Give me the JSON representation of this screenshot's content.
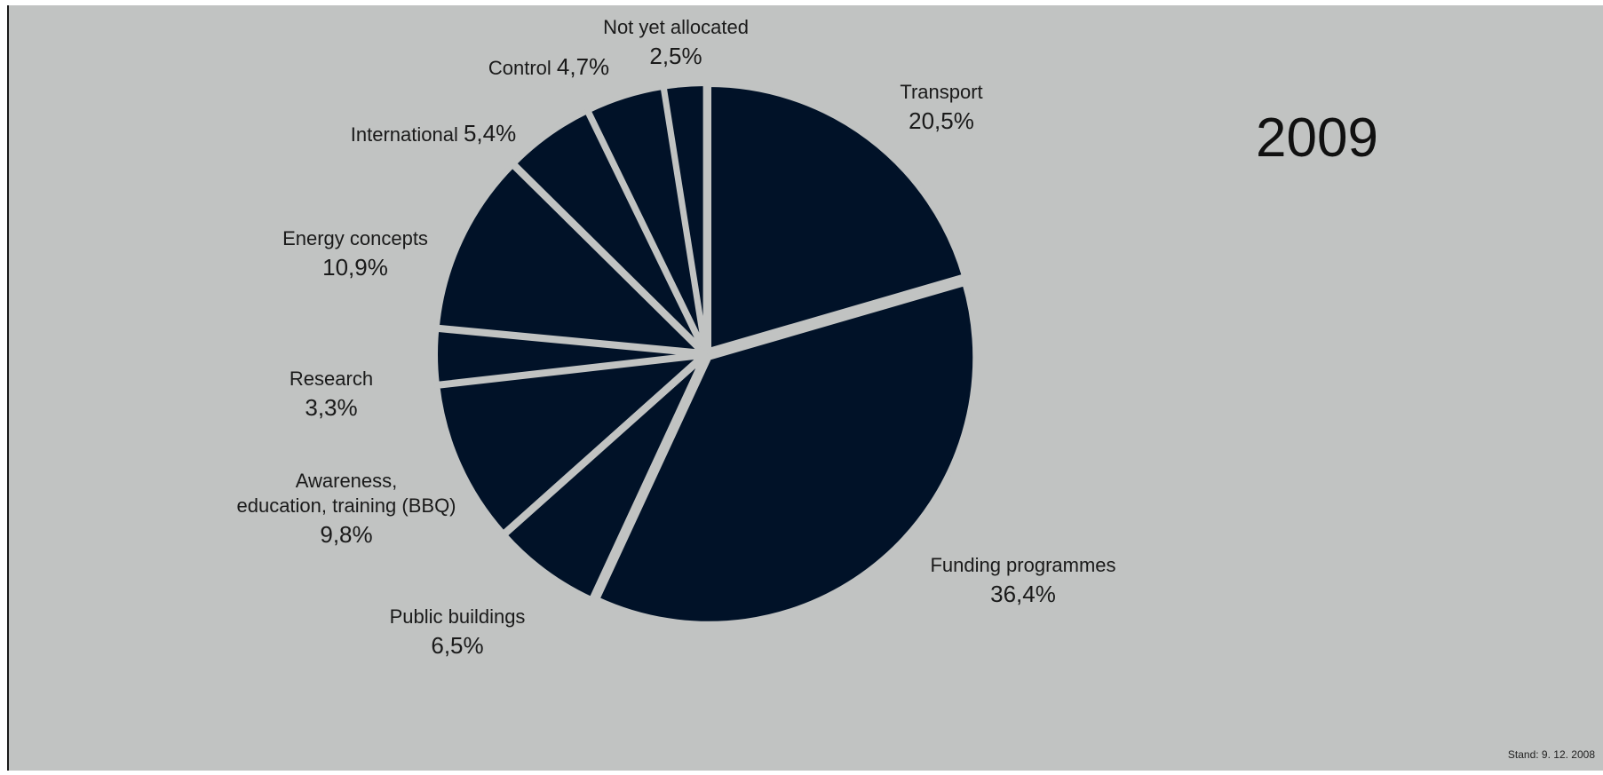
{
  "colors": {
    "background": "#c1c3c2",
    "slice": "#011228",
    "separator": "#c1c3c2",
    "text": "#1a1a1a"
  },
  "year": "2009",
  "stand": "Stand: 9. 12. 2008",
  "chart_data": {
    "type": "pie",
    "title": "",
    "start_angle_deg": 0,
    "direction": "clockwise",
    "slices": [
      {
        "label": "Transport",
        "value": 20.5,
        "value_label": "20,5%"
      },
      {
        "label": "Funding programmes",
        "value": 36.4,
        "value_label": "36,4%"
      },
      {
        "label": "Public buildings",
        "value": 6.5,
        "value_label": "6,5%"
      },
      {
        "label": "Awareness, education, training (BBQ)",
        "label_lines": [
          "Awareness,",
          "education, training (BBQ)"
        ],
        "value": 9.8,
        "value_label": "9,8%"
      },
      {
        "label": "Research",
        "value": 3.3,
        "value_label": "3,3%"
      },
      {
        "label": "Energy concepts",
        "value": 10.9,
        "value_label": "10,9%"
      },
      {
        "label": "International",
        "value": 5.4,
        "value_label": "5,4%"
      },
      {
        "label": "Control",
        "value": 4.7,
        "value_label": "4,7%"
      },
      {
        "label": "Not yet allocated",
        "value": 2.5,
        "value_label": "2,5%"
      }
    ]
  }
}
